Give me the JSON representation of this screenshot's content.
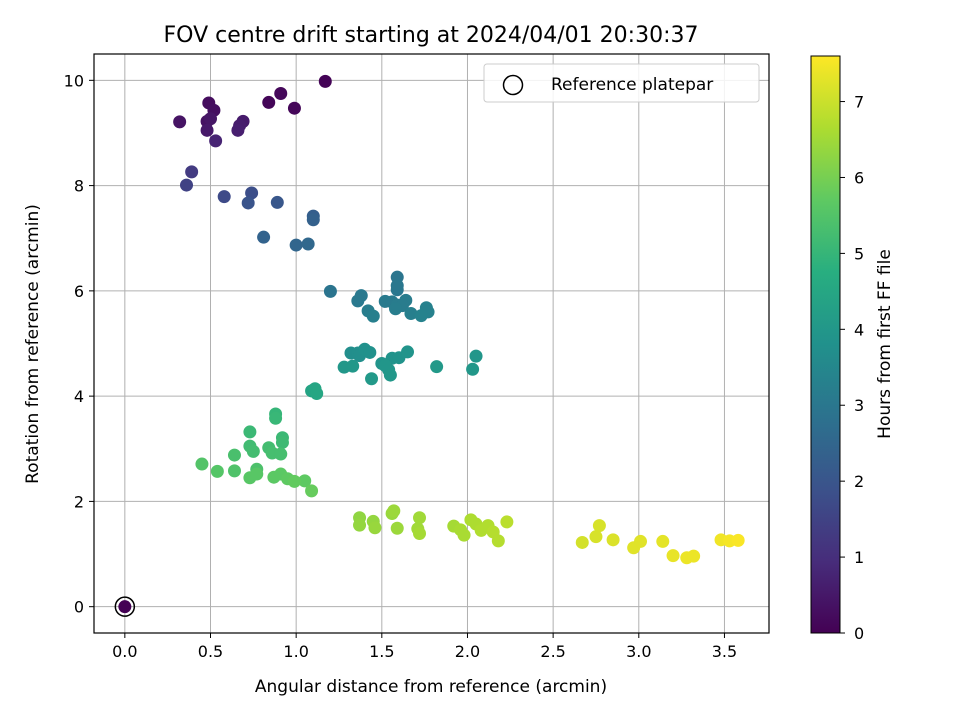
{
  "chart_data": {
    "type": "scatter",
    "title": "FOV centre drift starting at 2024/04/01 20:30:37",
    "xlabel": "Angular distance from reference (arcmin)",
    "ylabel": "Rotation from reference (arcmin)",
    "xlim": [
      -0.18,
      3.76
    ],
    "ylim": [
      -0.5,
      10.5
    ],
    "xticks": [
      "0.0",
      "0.5",
      "1.0",
      "1.5",
      "2.0",
      "2.5",
      "3.0",
      "3.5"
    ],
    "yticks": [
      "0",
      "2",
      "4",
      "6",
      "8",
      "10"
    ],
    "grid": true,
    "legend": {
      "position": "top-right",
      "entries": [
        "Reference platepar"
      ]
    },
    "colorbar": {
      "label": "Hours from first FF file",
      "range": [
        0,
        7.6
      ],
      "ticks": [
        "0",
        "1",
        "2",
        "3",
        "4",
        "5",
        "6",
        "7"
      ],
      "colormap": "viridis"
    },
    "reference_point": {
      "x": 0.0,
      "y": 0.0
    },
    "points": [
      [
        0.0,
        0.0,
        0.0
      ],
      [
        1.17,
        9.98,
        0.05
      ],
      [
        0.91,
        9.75,
        0.15
      ],
      [
        0.84,
        9.58,
        0.1
      ],
      [
        0.99,
        9.47,
        0.12
      ],
      [
        0.49,
        9.57,
        0.25
      ],
      [
        0.52,
        9.43,
        0.3
      ],
      [
        0.48,
        9.22,
        0.35
      ],
      [
        0.32,
        9.21,
        0.4
      ],
      [
        0.5,
        9.27,
        0.45
      ],
      [
        0.48,
        9.05,
        0.5
      ],
      [
        0.69,
        9.22,
        0.55
      ],
      [
        0.67,
        9.14,
        0.6
      ],
      [
        0.66,
        9.05,
        0.65
      ],
      [
        0.53,
        8.85,
        0.75
      ],
      [
        0.39,
        8.26,
        1.3
      ],
      [
        0.36,
        8.01,
        1.5
      ],
      [
        0.58,
        7.79,
        1.7
      ],
      [
        0.74,
        7.86,
        1.8
      ],
      [
        0.72,
        7.67,
        1.95
      ],
      [
        0.89,
        7.68,
        2.05
      ],
      [
        1.1,
        7.42,
        2.25
      ],
      [
        1.1,
        7.35,
        2.35
      ],
      [
        0.81,
        7.02,
        2.4
      ],
      [
        1.0,
        6.87,
        2.5
      ],
      [
        1.07,
        6.89,
        2.55
      ],
      [
        1.2,
        5.99,
        2.9
      ],
      [
        1.59,
        6.26,
        2.95
      ],
      [
        1.59,
        6.1,
        3.0
      ],
      [
        1.59,
        6.02,
        3.0
      ],
      [
        1.38,
        5.91,
        3.05
      ],
      [
        1.36,
        5.81,
        3.05
      ],
      [
        1.52,
        5.8,
        3.1
      ],
      [
        1.56,
        5.79,
        3.1
      ],
      [
        1.64,
        5.82,
        3.15
      ],
      [
        1.59,
        5.73,
        3.15
      ],
      [
        1.62,
        5.72,
        3.15
      ],
      [
        1.58,
        5.66,
        3.2
      ],
      [
        1.42,
        5.62,
        3.2
      ],
      [
        1.45,
        5.52,
        3.25
      ],
      [
        1.67,
        5.57,
        3.25
      ],
      [
        1.76,
        5.68,
        3.3
      ],
      [
        1.77,
        5.6,
        3.3
      ],
      [
        1.73,
        5.53,
        3.35
      ],
      [
        1.32,
        4.82,
        3.7
      ],
      [
        1.36,
        4.82,
        3.75
      ],
      [
        1.37,
        4.77,
        3.75
      ],
      [
        1.4,
        4.89,
        3.8
      ],
      [
        1.43,
        4.83,
        3.8
      ],
      [
        1.56,
        4.72,
        3.85
      ],
      [
        1.6,
        4.73,
        3.85
      ],
      [
        1.65,
        4.84,
        3.9
      ],
      [
        1.5,
        4.62,
        3.9
      ],
      [
        1.52,
        4.58,
        3.95
      ],
      [
        1.54,
        4.5,
        3.95
      ],
      [
        1.55,
        4.4,
        4.0
      ],
      [
        1.28,
        4.55,
        4.0
      ],
      [
        1.33,
        4.57,
        4.0
      ],
      [
        1.44,
        4.33,
        4.05
      ],
      [
        1.82,
        4.56,
        4.05
      ],
      [
        2.05,
        4.76,
        3.95
      ],
      [
        2.03,
        4.51,
        4.0
      ],
      [
        1.09,
        4.1,
        4.4
      ],
      [
        1.11,
        4.14,
        4.45
      ],
      [
        1.12,
        4.05,
        4.5
      ],
      [
        0.88,
        3.66,
        5.0
      ],
      [
        0.88,
        3.58,
        5.05
      ],
      [
        0.73,
        3.32,
        5.1
      ],
      [
        0.92,
        3.21,
        5.1
      ],
      [
        0.92,
        3.12,
        5.15
      ],
      [
        0.73,
        3.05,
        5.2
      ],
      [
        0.75,
        2.95,
        5.25
      ],
      [
        0.84,
        3.02,
        5.25
      ],
      [
        0.86,
        2.92,
        5.3
      ],
      [
        0.91,
        2.9,
        5.3
      ],
      [
        0.64,
        2.88,
        5.35
      ],
      [
        0.77,
        2.61,
        5.4
      ],
      [
        0.64,
        2.58,
        5.45
      ],
      [
        0.45,
        2.71,
        5.5
      ],
      [
        0.54,
        2.57,
        5.55
      ],
      [
        0.73,
        2.45,
        5.6
      ],
      [
        0.77,
        2.52,
        5.6
      ],
      [
        0.87,
        2.46,
        5.65
      ],
      [
        0.91,
        2.52,
        5.65
      ],
      [
        0.95,
        2.43,
        5.7
      ],
      [
        1.05,
        2.39,
        5.7
      ],
      [
        0.99,
        2.38,
        5.75
      ],
      [
        1.09,
        2.2,
        5.8
      ],
      [
        1.37,
        1.69,
        6.3
      ],
      [
        1.37,
        1.55,
        6.35
      ],
      [
        1.45,
        1.62,
        6.35
      ],
      [
        1.46,
        1.5,
        6.4
      ],
      [
        1.56,
        1.77,
        6.4
      ],
      [
        1.57,
        1.82,
        6.45
      ],
      [
        1.59,
        1.49,
        6.45
      ],
      [
        1.72,
        1.69,
        6.5
      ],
      [
        1.71,
        1.48,
        6.5
      ],
      [
        1.72,
        1.39,
        6.55
      ],
      [
        1.92,
        1.53,
        6.55
      ],
      [
        1.96,
        1.46,
        6.6
      ],
      [
        1.98,
        1.36,
        6.6
      ],
      [
        2.02,
        1.65,
        6.65
      ],
      [
        2.05,
        1.57,
        6.65
      ],
      [
        2.08,
        1.45,
        6.7
      ],
      [
        2.12,
        1.54,
        6.7
      ],
      [
        2.15,
        1.42,
        6.75
      ],
      [
        2.18,
        1.25,
        6.75
      ],
      [
        2.23,
        1.61,
        6.8
      ],
      [
        2.67,
        1.22,
        7.1
      ],
      [
        2.75,
        1.33,
        7.15
      ],
      [
        2.77,
        1.54,
        7.15
      ],
      [
        2.85,
        1.27,
        7.2
      ],
      [
        2.97,
        1.12,
        7.25
      ],
      [
        3.01,
        1.24,
        7.25
      ],
      [
        3.14,
        1.24,
        7.3
      ],
      [
        3.2,
        0.97,
        7.35
      ],
      [
        3.28,
        0.93,
        7.4
      ],
      [
        3.32,
        0.96,
        7.4
      ],
      [
        3.48,
        1.27,
        7.45
      ],
      [
        3.53,
        1.25,
        7.5
      ],
      [
        3.58,
        1.26,
        7.55
      ]
    ]
  }
}
